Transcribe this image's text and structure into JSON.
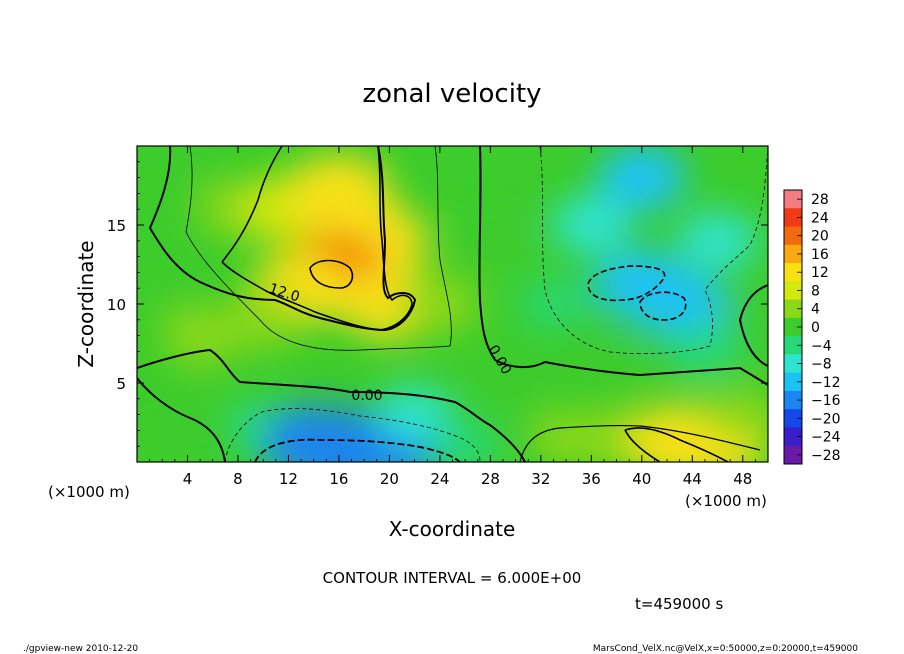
{
  "chart_data": {
    "type": "heatmap",
    "title": "zonal velocity",
    "xlabel": "X-coordinate",
    "ylabel": "Z-coordinate",
    "x_unit": "(×1000 m)",
    "y_unit": "(×1000 m)",
    "xlim": [
      0,
      50
    ],
    "ylim": [
      0,
      20
    ],
    "x_ticks": [
      4,
      8,
      12,
      16,
      20,
      24,
      28,
      32,
      36,
      40,
      44,
      48
    ],
    "y_ticks": [
      5,
      10,
      15
    ],
    "colorbar_levels": [
      28,
      24,
      20,
      16,
      12,
      8,
      4,
      0,
      -4,
      -8,
      -12,
      -16,
      -20,
      -24,
      -28
    ],
    "contour_labels": [
      "12.0",
      "0.00",
      "0.00"
    ],
    "contour_interval": "CONTOUR INTERVAL = 6.000E+00",
    "time_label": "t=459000 s",
    "blobs": [
      {
        "x": 8,
        "z": 16,
        "u": 6
      },
      {
        "x": 12,
        "z": 16,
        "u": 10
      },
      {
        "x": 16,
        "z": 17,
        "u": 14
      },
      {
        "x": 19,
        "z": 14,
        "u": 13
      },
      {
        "x": 15.5,
        "z": 11.8,
        "u": 20
      },
      {
        "x": 13,
        "z": 11,
        "u": 12
      },
      {
        "x": 20,
        "z": 10,
        "u": 12
      },
      {
        "x": 10,
        "z": 9,
        "u": 6
      },
      {
        "x": 24,
        "z": 10,
        "u": 6
      },
      {
        "x": 3,
        "z": 18,
        "u": 3
      },
      {
        "x": 5,
        "z": 8,
        "u": 6
      },
      {
        "x": 2,
        "z": 12,
        "u": 2
      },
      {
        "x": 28,
        "z": 14,
        "u": 2
      },
      {
        "x": 33,
        "z": 10,
        "u": -2
      },
      {
        "x": 36,
        "z": 15,
        "u": -6
      },
      {
        "x": 40,
        "z": 18,
        "u": -9
      },
      {
        "x": 40,
        "z": 11.2,
        "u": -12
      },
      {
        "x": 43,
        "z": 10,
        "u": -11
      },
      {
        "x": 46,
        "z": 14,
        "u": -6
      },
      {
        "x": 45,
        "z": 7,
        "u": -4
      },
      {
        "x": 49,
        "z": 9,
        "u": 1
      },
      {
        "x": 38,
        "z": 6,
        "u": 1
      },
      {
        "x": 30,
        "z": 5,
        "u": 3
      },
      {
        "x": 6,
        "z": 4,
        "u": 1
      },
      {
        "x": 10,
        "z": 2,
        "u": -4
      },
      {
        "x": 16,
        "z": 0.8,
        "u": -18
      },
      {
        "x": 14,
        "z": 1.2,
        "u": -14
      },
      {
        "x": 20,
        "z": 1.0,
        "u": -14
      },
      {
        "x": 22,
        "z": 3,
        "u": -5
      },
      {
        "x": 26,
        "z": 1,
        "u": -3
      },
      {
        "x": 34,
        "z": 1.5,
        "u": 4
      },
      {
        "x": 38,
        "z": 1.5,
        "u": 6
      },
      {
        "x": 43,
        "z": 1.2,
        "u": 14
      },
      {
        "x": 46,
        "z": 1.0,
        "u": 12
      },
      {
        "x": 48,
        "z": 3,
        "u": 4
      },
      {
        "x": 1,
        "z": 1,
        "u": 1
      }
    ]
  },
  "footer": {
    "left": "./gpview-new  2010-12-20",
    "right": "MarsCond_VelX.nc@VelX,x=0:50000,z=0:20000,t=459000"
  },
  "colors": {
    "scale": [
      "#6a1aa8",
      "#3a1fc8",
      "#1548e8",
      "#1c86f0",
      "#1cc2f4",
      "#2ee4d0",
      "#28d878",
      "#3ccc2c",
      "#8cd818",
      "#d2e80e",
      "#f8e012",
      "#f8aa10",
      "#f26a0e",
      "#f03a16",
      "#f47c80"
    ]
  }
}
